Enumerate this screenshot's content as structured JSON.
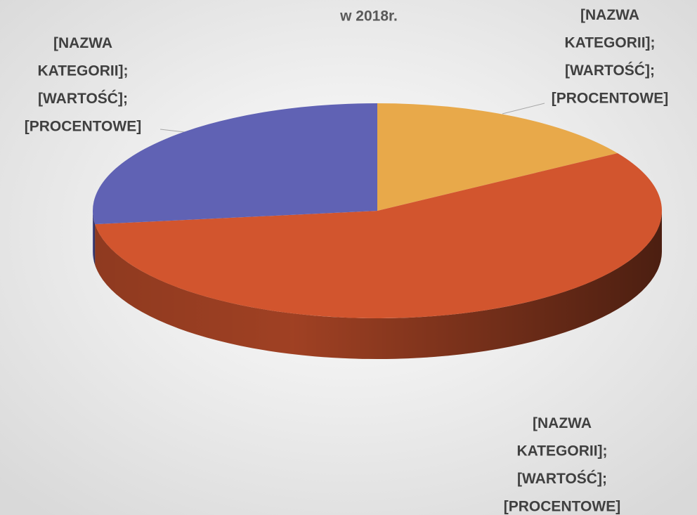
{
  "chart_data": {
    "type": "pie",
    "title": "w 2018r.",
    "values": [
      16,
      57,
      27
    ],
    "colors": [
      "#e8a94a",
      "#d2552e",
      "#6062b4"
    ],
    "data_labels": [
      [
        "[NAZWA",
        "KATEGORII];",
        "[WARTOŚĆ];",
        "[PROCENTOWE]"
      ],
      [
        "[NAZWA",
        "KATEGORII];",
        "[WARTOŚĆ];",
        "[PROCENTOWE]"
      ],
      [
        "[NAZWA",
        "KATEGORII];",
        "[WARTOŚĆ];",
        "[PROCENTOWE]"
      ]
    ]
  }
}
